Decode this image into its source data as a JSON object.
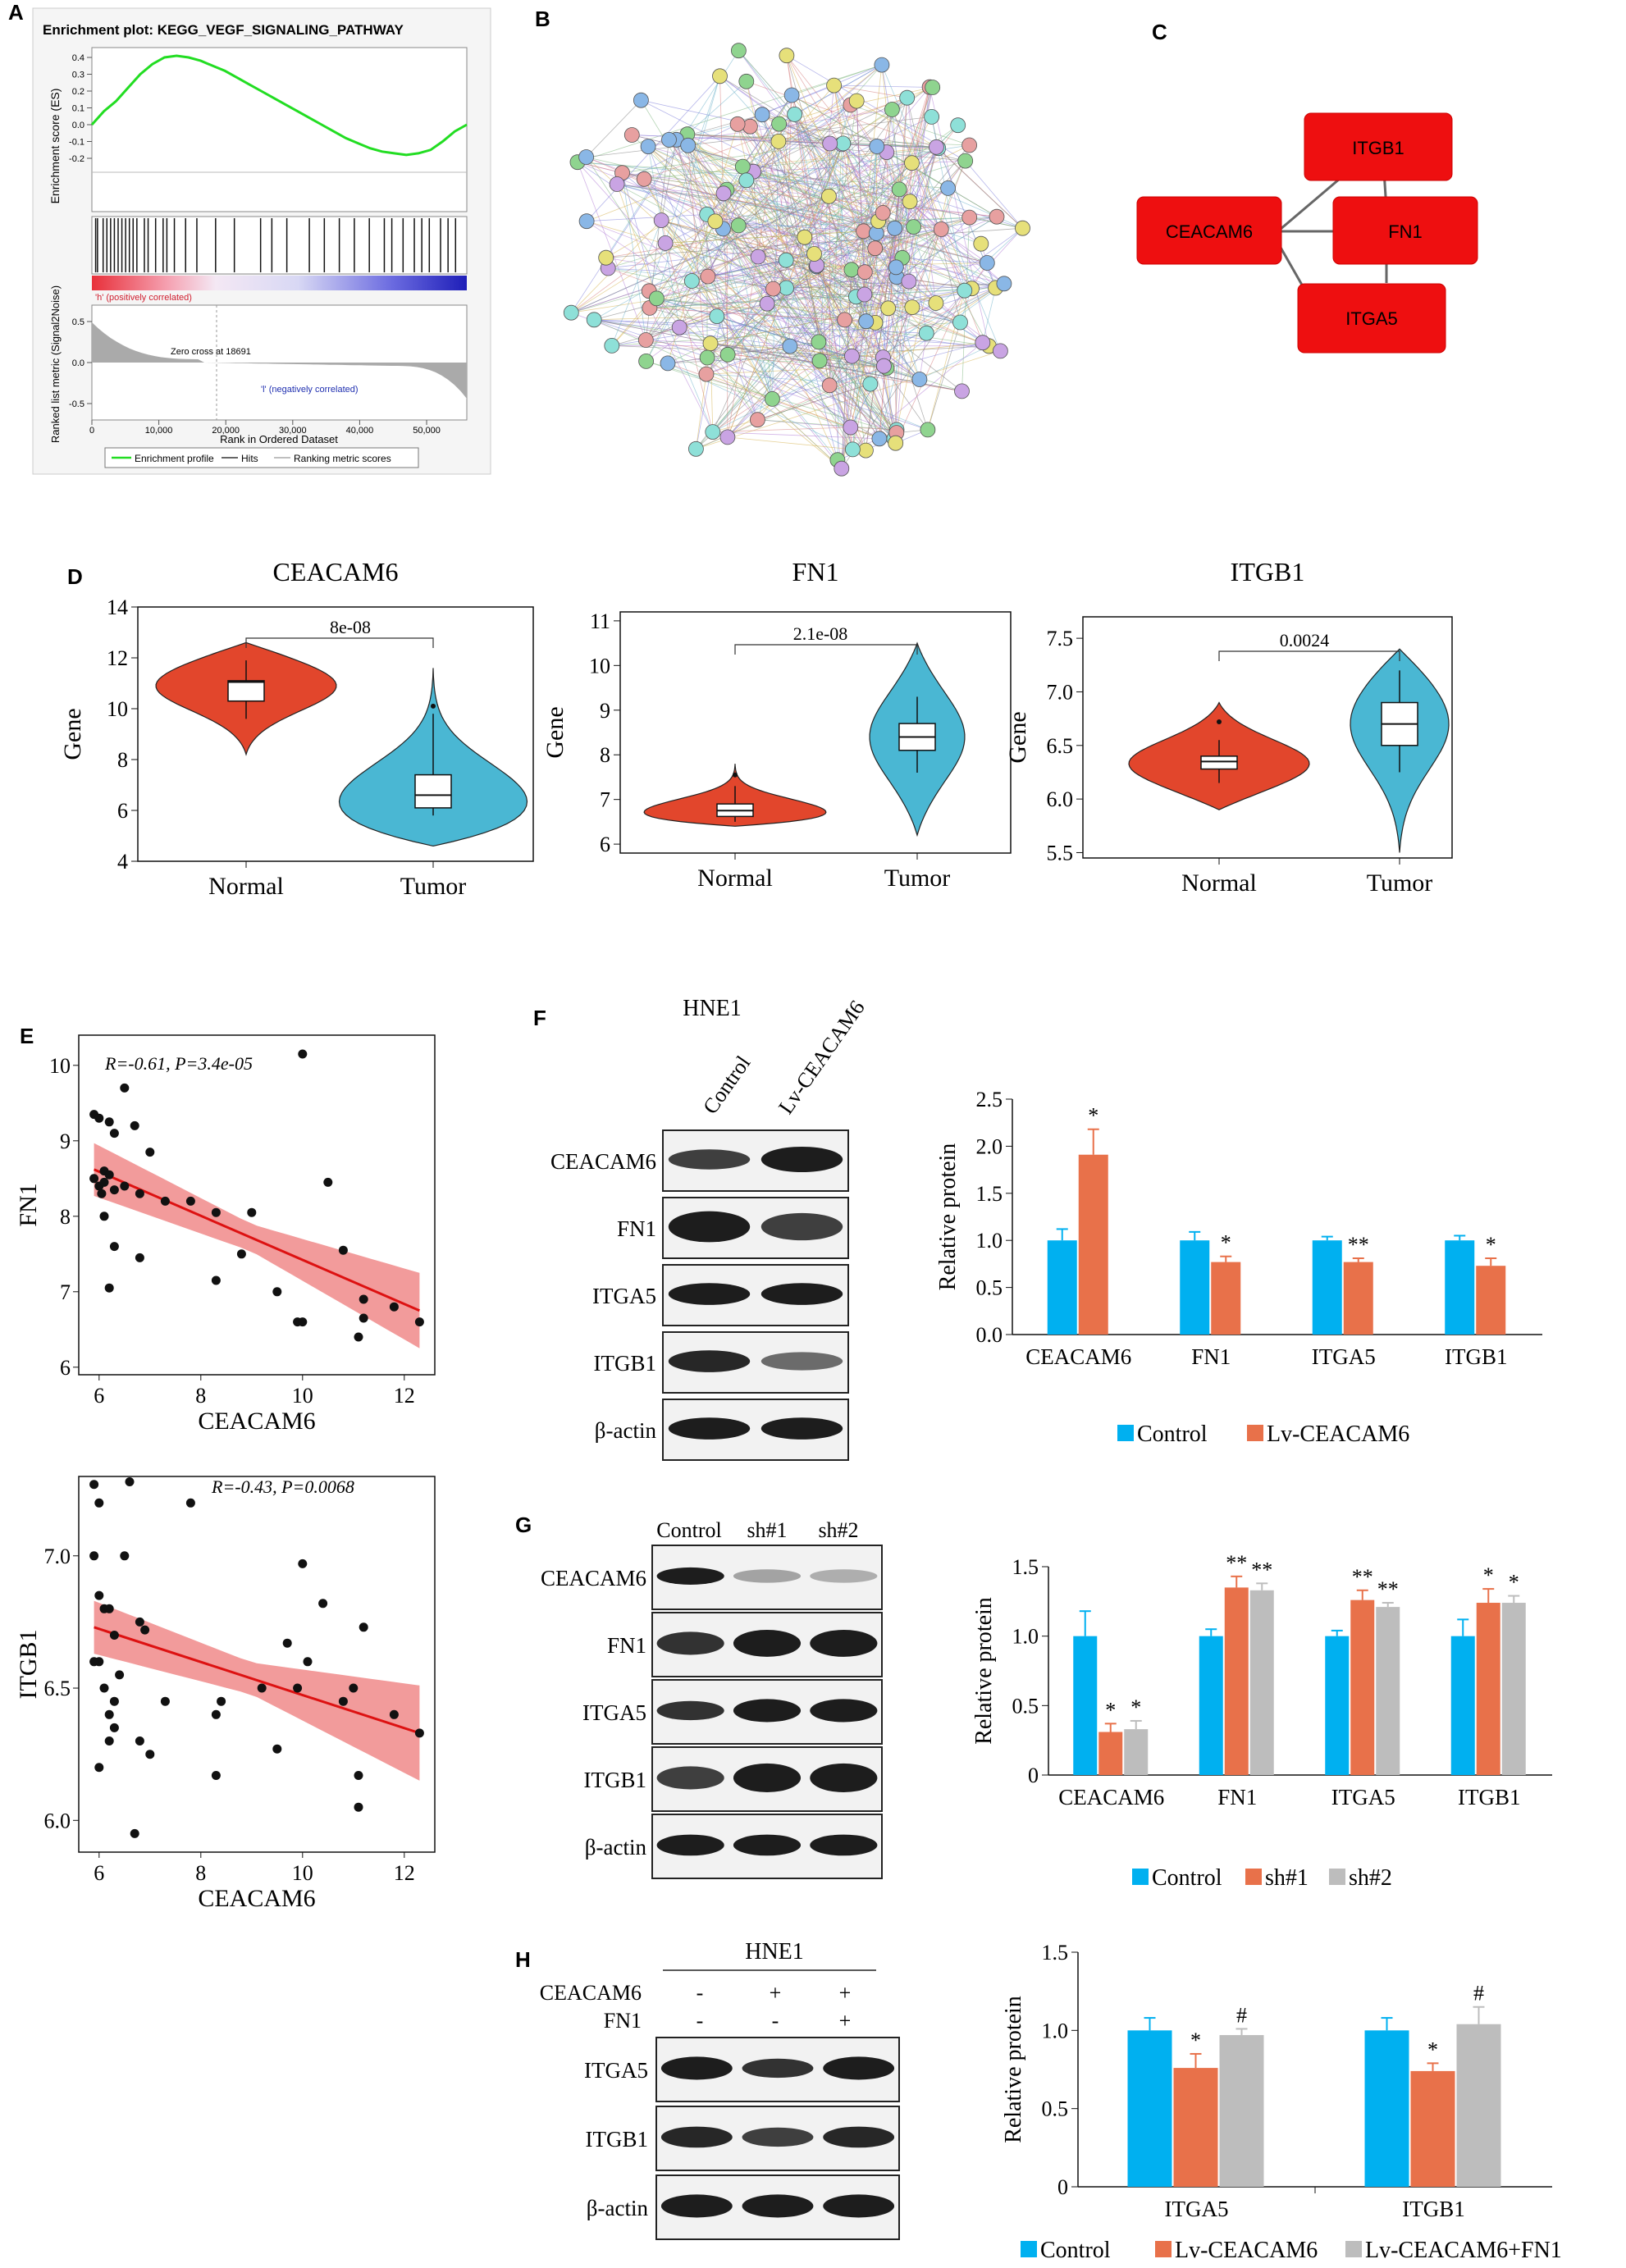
{
  "panels": {
    "A": "A",
    "B": "B",
    "C": "C",
    "D": "D",
    "E": "E",
    "F": "F",
    "G": "G",
    "H": "H"
  },
  "gsea": {
    "title": "Enrichment plot: KEGG_VEGF_SIGNALING_PATHWAY",
    "es_ylabel": "Enrichment score (ES)",
    "es_ticks": [
      "0.4",
      "0.3",
      "0.2",
      "0.1",
      "0.0",
      "-0.1",
      "-0.2"
    ],
    "metric_ylabel": "Ranked list metric (Signal2Noise)",
    "metric_ticks": [
      "0.5",
      "0.0",
      "-0.5"
    ],
    "pos_label": "'h' (positively correlated)",
    "neg_label": "'l' (negatively correlated)",
    "zero_cross": "Zero cross at 18691",
    "x_ticks": [
      "0",
      "10,000",
      "20,000",
      "30,000",
      "40,000",
      "50,000"
    ],
    "xlabel": "Rank in Ordered Dataset",
    "legend": [
      "Enrichment profile",
      "Hits",
      "Ranking metric scores"
    ],
    "colors": {
      "es": "#22dd22",
      "pos": "#e8303a",
      "neg": "#2020c0"
    }
  },
  "ppi": {
    "colors": [
      "#8fd48f",
      "#8ab7e6",
      "#e7a0a0",
      "#c9a4e3",
      "#e6e07a",
      "#8ee0d8"
    ]
  },
  "hub": {
    "nodes": [
      "ITGB1",
      "CEACAM6",
      "FN1",
      "ITGA5"
    ],
    "color": "#ee0f10"
  },
  "violin": {
    "ylabel": "Gene",
    "groups": [
      "Normal",
      "Tumor"
    ],
    "colors": {
      "normal": "#e2462c",
      "tumor": "#4ab7d3"
    },
    "plots": [
      {
        "title": "CEACAM6",
        "p": "8e-08",
        "yticks": [
          "4",
          "6",
          "8",
          "10",
          "12",
          "14"
        ]
      },
      {
        "title": "FN1",
        "p": "2.1e-08",
        "yticks": [
          "6",
          "7",
          "8",
          "9",
          "10",
          "11"
        ]
      },
      {
        "title": "ITGB1",
        "p": "0.0024",
        "yticks": [
          "5.5",
          "6.0",
          "6.5",
          "7.0",
          "7.5"
        ]
      }
    ]
  },
  "scatter": {
    "xlabel": "CEACAM6",
    "xticks": [
      "6",
      "8",
      "10",
      "12"
    ],
    "top": {
      "ylabel": "FN1",
      "r": "R=-0.61, P=3.4e-05",
      "yticks": [
        "6",
        "7",
        "8",
        "9",
        "10"
      ]
    },
    "bottom": {
      "ylabel": "ITGB1",
      "r": "R=-0.43, P=0.0068",
      "yticks": [
        "6.0",
        "6.5",
        "7.0"
      ]
    },
    "band_color": "#f08a8a",
    "line_color": "#dd1111"
  },
  "blotF": {
    "cell": "HNE1",
    "lanes": [
      "Control",
      "Lv-CEACAM6"
    ],
    "rows": [
      "CEACAM6",
      "FN1",
      "ITGA5",
      "ITGB1",
      "β-actin"
    ]
  },
  "blotG": {
    "lanes": [
      "Control",
      "sh#1",
      "sh#2"
    ],
    "rows": [
      "CEACAM6",
      "FN1",
      "ITGA5",
      "ITGB1",
      "β-actin"
    ]
  },
  "blotH": {
    "cell": "HNE1",
    "cond_labels": [
      "CEACAM6",
      "FN1"
    ],
    "cond_rows": [
      [
        "-",
        "+",
        "+"
      ],
      [
        "-",
        "-",
        "+"
      ]
    ],
    "rows": [
      "ITGA5",
      "ITGB1",
      "β-actin"
    ]
  },
  "chart_data": [
    {
      "type": "bar",
      "panel": "F",
      "ylabel": "Relative protein",
      "ylim": [
        0,
        2.5
      ],
      "yticks": [
        "0.0",
        "0.5",
        "1.0",
        "1.5",
        "2.0",
        "2.5"
      ],
      "categories": [
        "CEACAM6",
        "FN1",
        "ITGA5",
        "ITGB1"
      ],
      "series": [
        {
          "name": "Control",
          "values": [
            1.0,
            1.0,
            1.0,
            1.0
          ],
          "errors": [
            0.12,
            0.09,
            0.04,
            0.05
          ],
          "color": "#00b0f0"
        },
        {
          "name": "Lv-CEACAM6",
          "values": [
            1.91,
            0.77,
            0.77,
            0.73
          ],
          "errors": [
            0.27,
            0.06,
            0.04,
            0.08
          ],
          "color": "#e8714a"
        }
      ],
      "annotations": [
        [
          [],
          [
            "*"
          ]
        ],
        [
          [],
          [
            "*"
          ]
        ],
        [
          [],
          [
            "**"
          ]
        ],
        [
          [],
          [
            "*"
          ]
        ]
      ]
    },
    {
      "type": "bar",
      "panel": "G",
      "ylabel": "Relative protein",
      "ylim": [
        0,
        1.5
      ],
      "yticks": [
        "0",
        "0.5",
        "1.0",
        "1.5"
      ],
      "categories": [
        "CEACAM6",
        "FN1",
        "ITGA5",
        "ITGB1"
      ],
      "series": [
        {
          "name": "Control",
          "values": [
            1.0,
            1.0,
            1.0,
            1.0
          ],
          "errors": [
            0.18,
            0.05,
            0.04,
            0.12
          ],
          "color": "#00b0f0"
        },
        {
          "name": "sh#1",
          "values": [
            0.31,
            1.35,
            1.26,
            1.24
          ],
          "errors": [
            0.06,
            0.08,
            0.07,
            0.1
          ],
          "color": "#e8714a"
        },
        {
          "name": "sh#2",
          "values": [
            0.33,
            1.33,
            1.21,
            1.24
          ],
          "errors": [
            0.06,
            0.05,
            0.03,
            0.05
          ],
          "color": "#bdbdbd"
        }
      ],
      "annotations": [
        [
          [],
          [
            "*"
          ],
          [
            "*"
          ]
        ],
        [
          [],
          [
            "**"
          ],
          [
            "**"
          ]
        ],
        [
          [],
          [
            "**"
          ],
          [
            "**"
          ]
        ],
        [
          [],
          [
            "*"
          ],
          [
            "*"
          ]
        ]
      ]
    },
    {
      "type": "bar",
      "panel": "H",
      "ylabel": "Relative protein",
      "ylim": [
        0,
        1.5
      ],
      "yticks": [
        "0",
        "0.5",
        "1.0",
        "1.5"
      ],
      "categories": [
        "ITGA5",
        "ITGB1"
      ],
      "series": [
        {
          "name": "Control",
          "values": [
            1.0,
            1.0
          ],
          "errors": [
            0.08,
            0.08
          ],
          "color": "#00b0f0"
        },
        {
          "name": "Lv-CEACAM6",
          "values": [
            0.76,
            0.74
          ],
          "errors": [
            0.09,
            0.05
          ],
          "color": "#e8714a"
        },
        {
          "name": "Lv-CEACAM6+FN1",
          "values": [
            0.97,
            1.04
          ],
          "errors": [
            0.04,
            0.11
          ],
          "color": "#bdbdbd"
        }
      ],
      "annotations": [
        [
          [],
          [
            "*"
          ],
          [
            "#"
          ]
        ],
        [
          [],
          [
            "*"
          ],
          [
            "#"
          ]
        ]
      ]
    }
  ]
}
